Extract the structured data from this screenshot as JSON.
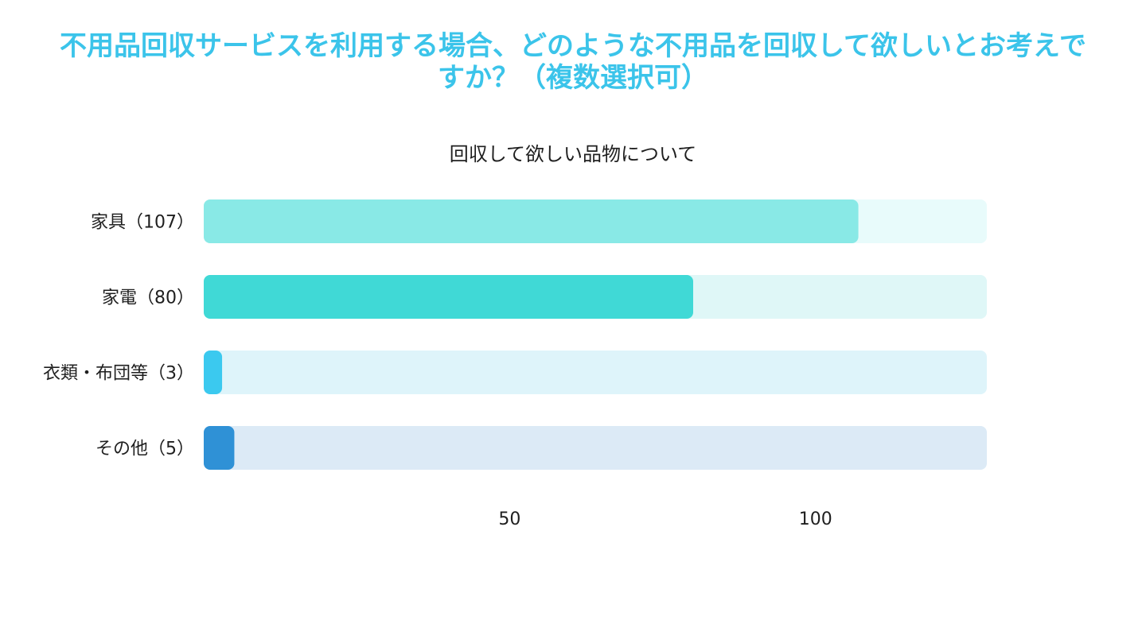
{
  "header": {
    "title": "不用品回収サービスを利用する場合、どのような不用品を回収して欲しいとお考えですか？（複数選択可）"
  },
  "chart_data": {
    "type": "bar",
    "orientation": "horizontal",
    "title": "回収して欲しい品物について",
    "categories": [
      "家具（107）",
      "家電（80）",
      "衣類・布団等（3）",
      "その他（5）"
    ],
    "values": [
      107,
      80,
      3,
      5
    ],
    "xlim": [
      0,
      128
    ],
    "x_ticks": [
      50,
      100
    ],
    "colors": [
      "#89e9e6",
      "#40d9d6",
      "#3bc9ef",
      "#2f91d6"
    ],
    "track_colors": [
      "#e8fbfb",
      "#dff7f7",
      "#def4fa",
      "#dceaf6"
    ],
    "grid": false,
    "legend": "none"
  }
}
